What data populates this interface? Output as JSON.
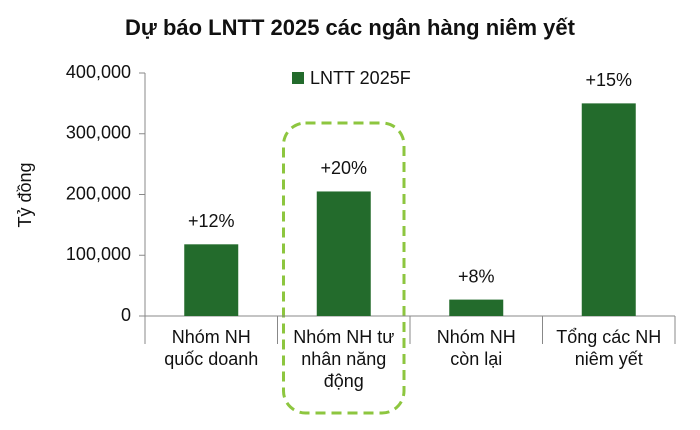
{
  "chart_data": {
    "type": "bar",
    "title": "Dự báo LNTT 2025 các ngân hàng niêm yết",
    "y_label": "Tỷ đồng",
    "categories": [
      "Nhóm NH\nquốc doanh",
      "Nhóm NH tư\nnhân năng\nđộng",
      "Nhóm NH\ncòn lại",
      "Tổng các NH\nniêm yết"
    ],
    "series": [
      {
        "name": "LNTT 2025F",
        "color": "#236b2c",
        "values": [
          118000,
          205000,
          27000,
          350000
        ]
      }
    ],
    "annotations": [
      "+12%",
      "+20%",
      "+8%",
      "+15%"
    ],
    "ylim": [
      0,
      400000
    ],
    "yticks": [
      0,
      {
        "value": 100000,
        "label": "100,000"
      },
      {
        "value": 200000,
        "label": "200,000"
      },
      {
        "value": 300000,
        "label": "300,000"
      },
      {
        "value": 400000,
        "label": "400,000"
      }
    ],
    "highlight_color": "#8dc63f",
    "legend": "top"
  }
}
